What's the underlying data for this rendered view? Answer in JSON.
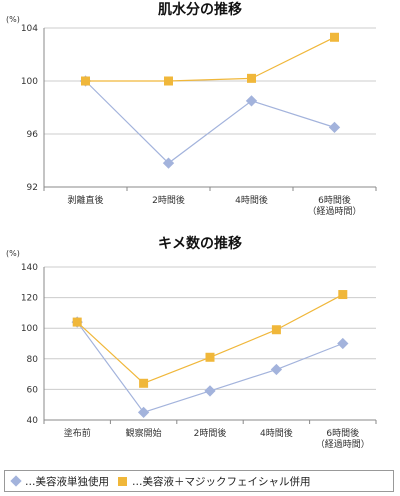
{
  "colors": {
    "series1": "#a3b3dc",
    "series2": "#f0b73a",
    "grid": "#cccccc",
    "axis": "#888888"
  },
  "chart_data": [
    {
      "type": "line",
      "title": "肌水分の推移",
      "unit": "(%)",
      "categories": [
        "剥離直後",
        "2時間後",
        "4時間後",
        "6時間後\n（経過時間）"
      ],
      "ylim": [
        92,
        104
      ],
      "yticks": [
        92,
        96,
        100,
        104
      ],
      "grid": true,
      "series": [
        {
          "name": "美容液単独使用",
          "marker": "diamond",
          "values": [
            100.0,
            93.8,
            98.5,
            96.5
          ]
        },
        {
          "name": "美容液+マジックフェイシャル併用",
          "marker": "square",
          "values": [
            100.0,
            100.0,
            100.2,
            103.3
          ]
        }
      ]
    },
    {
      "type": "line",
      "title": "キメ数の推移",
      "unit": "(%)",
      "categories": [
        "塗布前",
        "観察開始",
        "2時間後",
        "4時間後",
        "6時間後\n（経過時間）"
      ],
      "ylim": [
        40,
        140
      ],
      "yticks": [
        40,
        60,
        80,
        100,
        120,
        140
      ],
      "grid": true,
      "series": [
        {
          "name": "美容液単独使用",
          "marker": "diamond",
          "values": [
            104,
            45,
            59,
            73,
            90
          ]
        },
        {
          "name": "美容液+マジックフェイシャル併用",
          "marker": "square",
          "values": [
            104,
            64,
            81,
            99,
            122
          ]
        }
      ]
    }
  ],
  "legend": {
    "item1": "…美容液単独使用",
    "item2": "…美容液＋マジックフェイシャル併用"
  }
}
